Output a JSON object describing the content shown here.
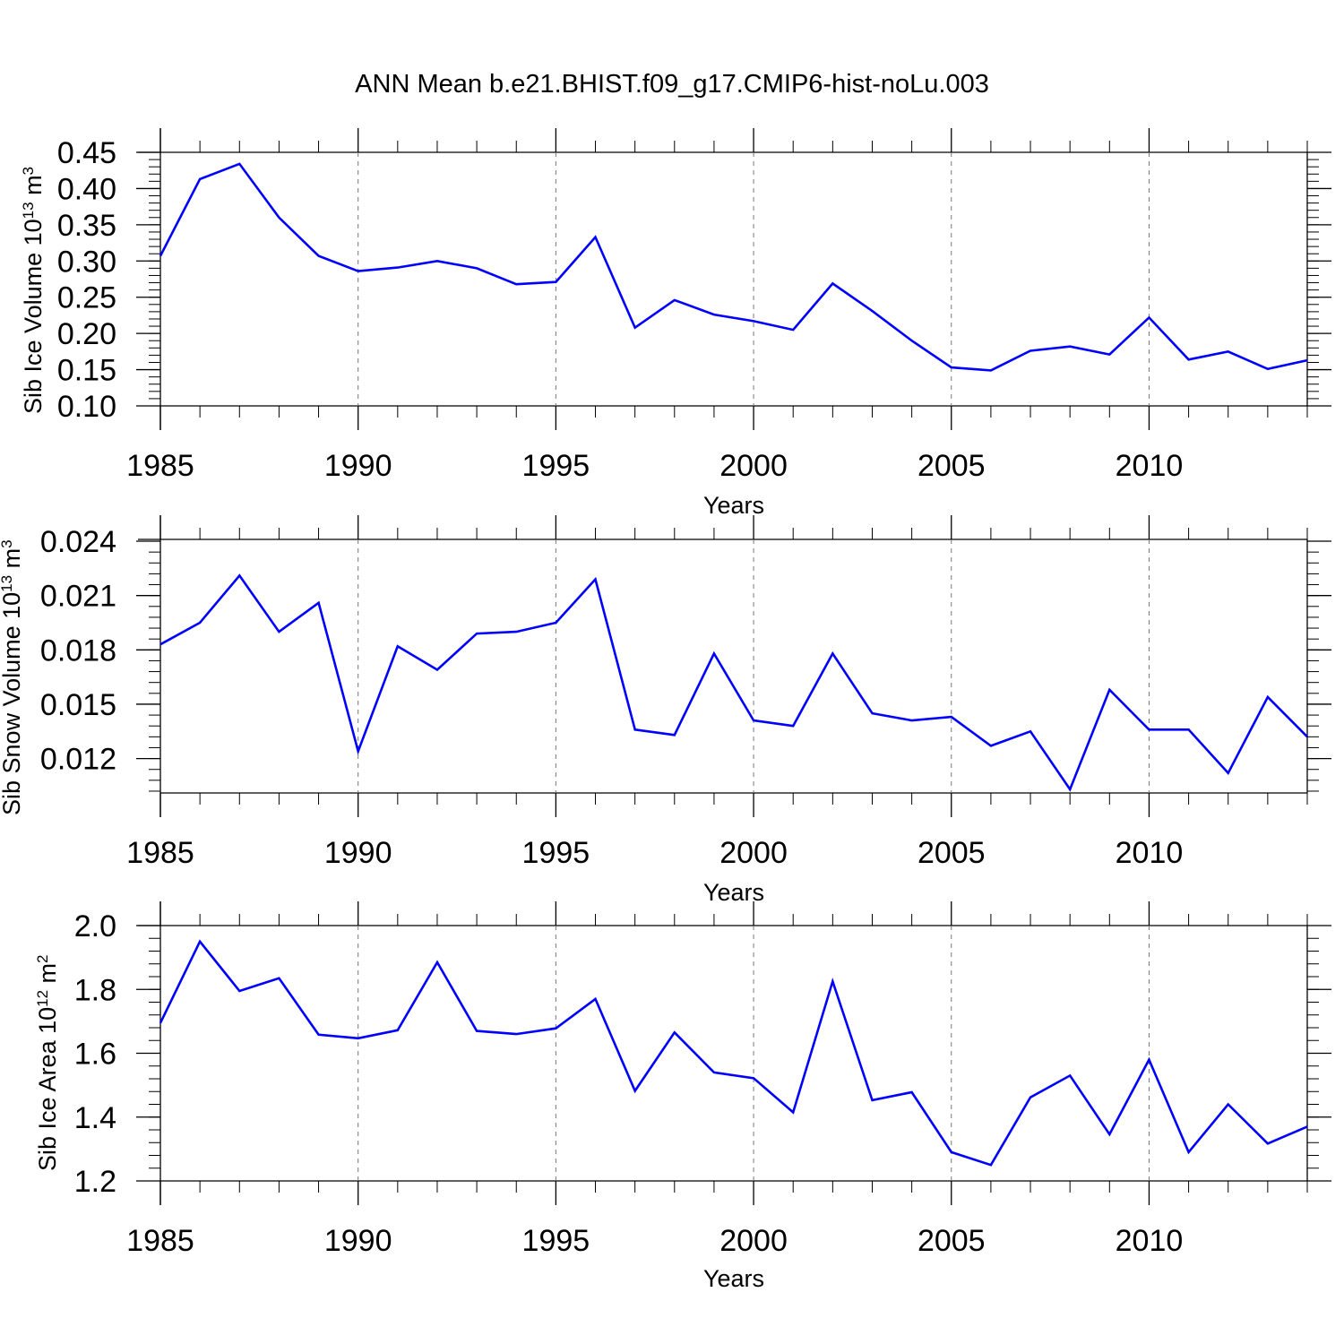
{
  "title": "ANN Mean b.e21.BHIST.f09_g17.CMIP6-hist-noLu.003",
  "colors": {
    "line": "#0000ff",
    "axis": "#000000",
    "grid": "#777777"
  },
  "chart_data": [
    {
      "type": "line",
      "title": "",
      "xlabel": "Years",
      "ylabel": {
        "text": "Sib Ice Volume 10",
        "exp": "13",
        "unit": " m",
        "unit_exp": "3"
      },
      "xlim": [
        1985,
        2014
      ],
      "ylim": [
        0.1,
        0.45
      ],
      "x_ticks": [
        "1985",
        "1990",
        "1995",
        "2000",
        "2005",
        "2010"
      ],
      "y_ticks": [
        "0.10",
        "0.15",
        "0.20",
        "0.25",
        "0.30",
        "0.35",
        "0.40",
        "0.45"
      ],
      "y_minor_step": 0.01,
      "x": [
        1985,
        1986,
        1987,
        1988,
        1989,
        1990,
        1991,
        1992,
        1993,
        1994,
        1995,
        1996,
        1997,
        1998,
        1999,
        2000,
        2001,
        2002,
        2003,
        2004,
        2005,
        2006,
        2007,
        2008,
        2009,
        2010,
        2011,
        2012,
        2013,
        2014
      ],
      "series": [
        {
          "name": "Sib Ice Volume",
          "values": [
            0.307,
            0.413,
            0.434,
            0.36,
            0.307,
            0.286,
            0.291,
            0.3,
            0.29,
            0.268,
            0.271,
            0.333,
            0.208,
            0.246,
            0.226,
            0.217,
            0.205,
            0.269,
            0.231,
            0.19,
            0.153,
            0.149,
            0.176,
            0.182,
            0.171,
            0.222,
            0.164,
            0.175,
            0.151,
            0.163
          ]
        }
      ]
    },
    {
      "type": "line",
      "title": "",
      "xlabel": "Years",
      "ylabel": {
        "text": "Sib Snow Volume 10",
        "exp": "13",
        "unit": " m",
        "unit_exp": "3"
      },
      "xlim": [
        1985,
        2014
      ],
      "ylim": [
        0.0101,
        0.0241
      ],
      "x_ticks": [
        "1985",
        "1990",
        "1995",
        "2000",
        "2005",
        "2010"
      ],
      "y_ticks": [
        "0.012",
        "0.015",
        "0.018",
        "0.021",
        "0.024"
      ],
      "y_minor_step": 0.0006,
      "x": [
        1985,
        1986,
        1987,
        1988,
        1989,
        1990,
        1991,
        1992,
        1993,
        1994,
        1995,
        1996,
        1997,
        1998,
        1999,
        2000,
        2001,
        2002,
        2003,
        2004,
        2005,
        2006,
        2007,
        2008,
        2009,
        2010,
        2011,
        2012,
        2013,
        2014
      ],
      "series": [
        {
          "name": "Sib Snow Volume",
          "values": [
            0.0183,
            0.0195,
            0.0221,
            0.019,
            0.0206,
            0.0124,
            0.0182,
            0.0169,
            0.0189,
            0.019,
            0.0195,
            0.0219,
            0.0136,
            0.0133,
            0.0178,
            0.0141,
            0.0138,
            0.0178,
            0.0145,
            0.0141,
            0.0143,
            0.0127,
            0.0135,
            0.0103,
            0.0158,
            0.0136,
            0.0136,
            0.0112,
            0.0154,
            0.0132
          ]
        }
      ]
    },
    {
      "type": "line",
      "title": "",
      "xlabel": "Years",
      "ylabel": {
        "text": "Sib Ice Area 10",
        "exp": "12",
        "unit": " m",
        "unit_exp": "2"
      },
      "xlim": [
        1985,
        2014
      ],
      "ylim": [
        1.2,
        2.0
      ],
      "x_ticks": [
        "1985",
        "1990",
        "1995",
        "2000",
        "2005",
        "2010"
      ],
      "y_ticks": [
        "1.2",
        "1.4",
        "1.6",
        "1.8",
        "2.0"
      ],
      "y_minor_step": 0.04,
      "x": [
        1985,
        1986,
        1987,
        1988,
        1989,
        1990,
        1991,
        1992,
        1993,
        1994,
        1995,
        1996,
        1997,
        1998,
        1999,
        2000,
        2001,
        2002,
        2003,
        2004,
        2005,
        2006,
        2007,
        2008,
        2009,
        2010,
        2011,
        2012,
        2013,
        2014
      ],
      "series": [
        {
          "name": "Sib Ice Area",
          "values": [
            1.695,
            1.95,
            1.795,
            1.835,
            1.658,
            1.647,
            1.672,
            1.885,
            1.67,
            1.66,
            1.678,
            1.77,
            1.482,
            1.665,
            1.54,
            1.522,
            1.415,
            1.825,
            1.453,
            1.478,
            1.29,
            1.25,
            1.462,
            1.53,
            1.346,
            1.58,
            1.29,
            1.44,
            1.317,
            1.37
          ]
        }
      ]
    }
  ]
}
